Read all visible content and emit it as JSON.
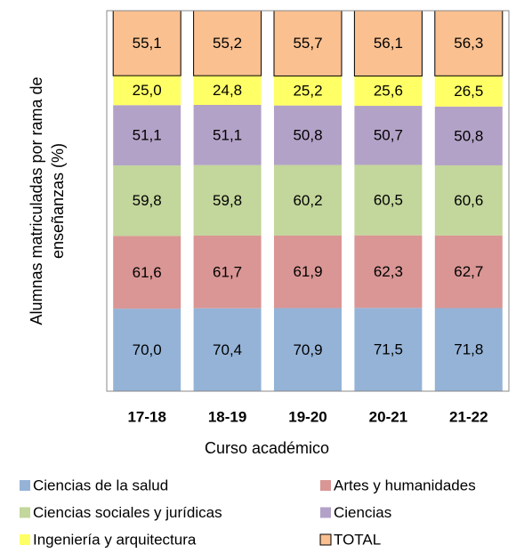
{
  "chart_data": {
    "type": "bar",
    "stack": "percent",
    "ylabel": [
      "Alumnas matriculadas por rama de",
      "enseñanzas (%)"
    ],
    "xlabel": "Curso académico",
    "categories": [
      "17-18",
      "18-19",
      "19-20",
      "20-21",
      "21-22"
    ],
    "legend": "bottom",
    "series": [
      {
        "name": "Ciencias de la salud",
        "color": "#95b3d7",
        "values": [
          70.0,
          70.4,
          70.9,
          71.5,
          71.8
        ],
        "value_labels": [
          "70,0",
          "70,4",
          "70,9",
          "71,5",
          "71,8"
        ]
      },
      {
        "name": "Artes y humanidades",
        "color": "#d99694",
        "values": [
          61.6,
          61.7,
          61.9,
          62.3,
          62.7
        ],
        "value_labels": [
          "61,6",
          "61,7",
          "61,9",
          "62,3",
          "62,7"
        ]
      },
      {
        "name": "Ciencias sociales y jurídicas",
        "color": "#c3d69b",
        "values": [
          59.8,
          59.8,
          60.2,
          60.5,
          60.6
        ],
        "value_labels": [
          "59,8",
          "59,8",
          "60,2",
          "60,5",
          "60,6"
        ]
      },
      {
        "name": "Ciencias",
        "color": "#b3a2c7",
        "values": [
          51.1,
          51.1,
          50.8,
          50.7,
          50.8
        ],
        "value_labels": [
          "51,1",
          "51,1",
          "50,8",
          "50,7",
          "50,8"
        ]
      },
      {
        "name": "Ingeniería y arquitectura",
        "color": "#ffff66",
        "values": [
          25.0,
          24.8,
          25.2,
          25.6,
          26.5
        ],
        "value_labels": [
          "25,0",
          "24,8",
          "25,2",
          "25,6",
          "26,5"
        ]
      },
      {
        "name": "TOTAL",
        "color": "#fac090",
        "values": [
          55.1,
          55.2,
          55.7,
          56.1,
          56.3
        ],
        "value_labels": [
          "55,1",
          "55,2",
          "55,7",
          "56,1",
          "56,3"
        ]
      }
    ]
  }
}
